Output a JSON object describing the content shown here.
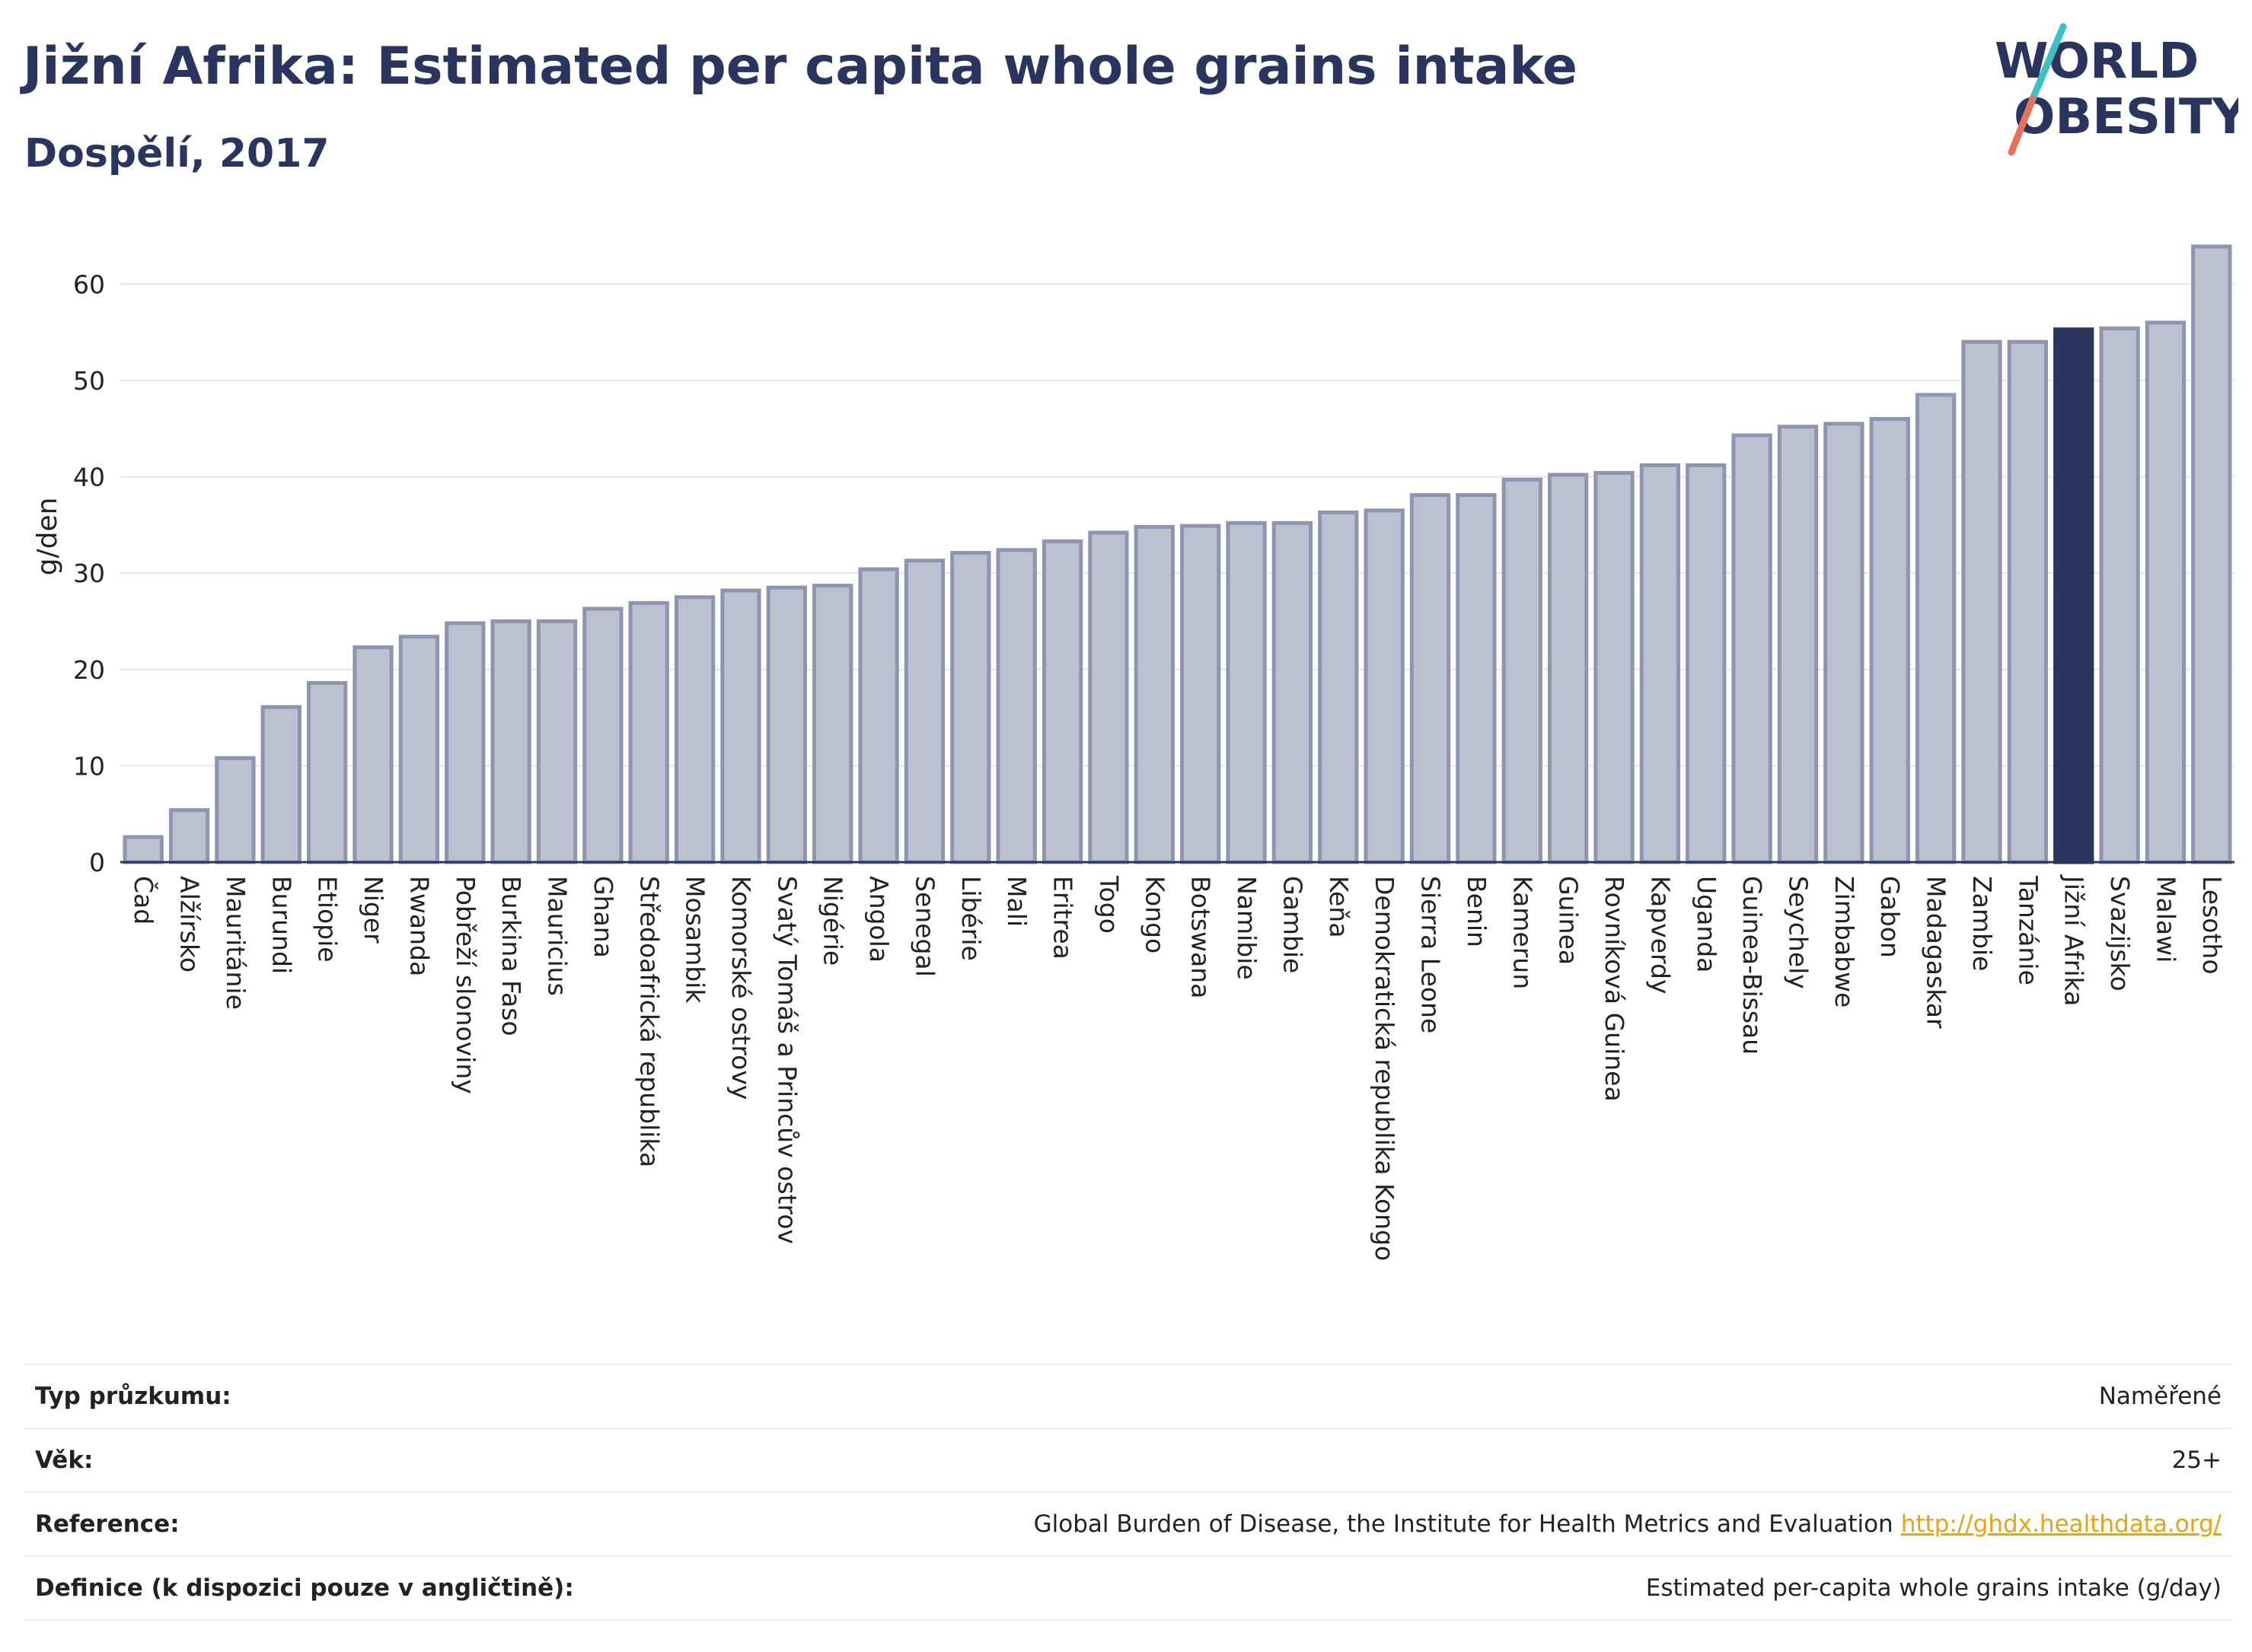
{
  "header": {
    "title": "Jižní Afrika: Estimated per capita whole grains intake",
    "subtitle": "Dospělí, 2017"
  },
  "logo": {
    "line1": "WORLD",
    "line2": "OBESITY"
  },
  "colors": {
    "bar": "#bcc1d0",
    "bar_outline": "#8e95b0",
    "highlight": "#2a355f",
    "grid": "#e6e6e6",
    "logo_teal": "#3fbfc5",
    "logo_coral": "#e8705f"
  },
  "chart_data": {
    "type": "bar",
    "categories": [
      "Čad",
      "Alžírsko",
      "Mauritánie",
      "Burundi",
      "Etiopie",
      "Niger",
      "Rwanda",
      "Pobřeží slonoviny",
      "Burkina Faso",
      "Mauricius",
      "Ghana",
      "Středoafrická republika",
      "Mosambik",
      "Komorské ostrovy",
      "Svatý Tomáš a Princův ostrov",
      "Nigérie",
      "Angola",
      "Senegal",
      "Libérie",
      "Mali",
      "Eritrea",
      "Togo",
      "Kongo",
      "Botswana",
      "Namibie",
      "Gambie",
      "Keňa",
      "Demokratická republika Kongo",
      "Sierra Leone",
      "Benin",
      "Kamerun",
      "Guinea",
      "Rovníková Guinea",
      "Kapverdy",
      "Uganda",
      "Guinea-Bissau",
      "Seychely",
      "Zimbabwe",
      "Gabon",
      "Madagaskar",
      "Zambie",
      "Tanzánie",
      "Jižní Afrika",
      "Svazijsko",
      "Malawi",
      "Lesotho"
    ],
    "values": [
      2.6,
      5.4,
      10.8,
      16.1,
      18.6,
      22.3,
      23.4,
      24.8,
      25.0,
      25.0,
      26.3,
      26.9,
      27.5,
      28.2,
      28.5,
      28.7,
      30.4,
      31.3,
      32.1,
      32.4,
      33.3,
      34.2,
      34.8,
      34.9,
      35.2,
      35.2,
      36.3,
      36.5,
      38.1,
      38.1,
      39.7,
      40.2,
      40.4,
      41.2,
      41.2,
      44.3,
      45.2,
      45.5,
      46.0,
      48.5,
      54.0,
      54.0,
      55.3,
      55.4,
      56.0,
      63.9
    ],
    "highlight": "Jižní Afrika",
    "ylabel": "g/den",
    "ylim": [
      0,
      65
    ],
    "yticks": [
      0,
      10,
      20,
      30,
      40,
      50,
      60
    ],
    "grid": true
  },
  "info": [
    {
      "label": "Typ průzkumu:",
      "value": "Naměřené"
    },
    {
      "label": "Věk:",
      "value": "25+"
    },
    {
      "label": "Reference:",
      "value": "Global Burden of Disease, the Institute for Health Metrics and Evaluation",
      "link": "http://ghdx.healthdata.org/"
    },
    {
      "label": "Definice (k dispozici pouze v angličtině):",
      "value": "Estimated per-capita whole grains intake (g/day)"
    }
  ]
}
